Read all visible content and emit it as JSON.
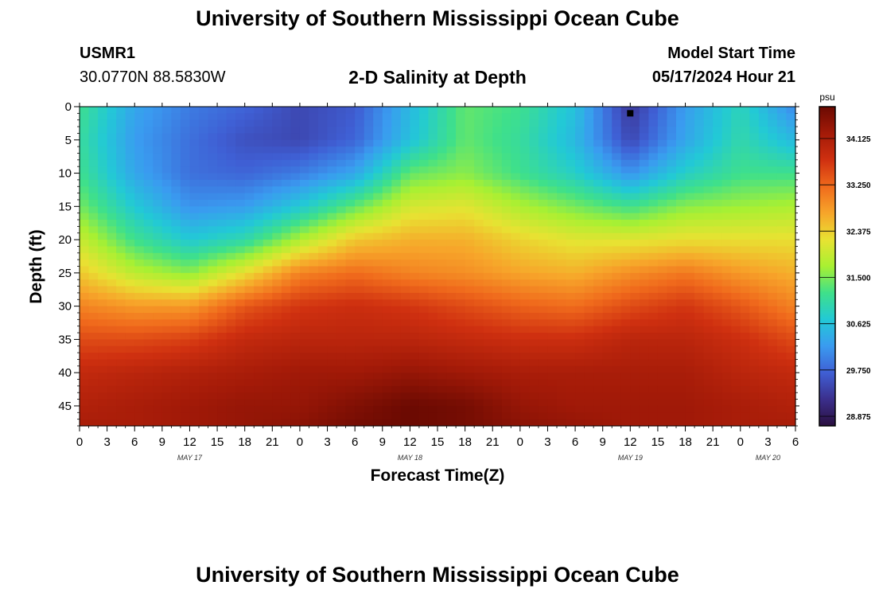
{
  "header": {
    "title": "University of Southern Mississippi Ocean Cube",
    "station": "USMR1",
    "coords": "30.0770N  88.5830W",
    "subtitle": "2-D Salinity at Depth",
    "model_start_label": "Model Start Time",
    "model_start_value": "05/17/2024 Hour 21"
  },
  "footer": {
    "title": "University of Southern Mississippi Ocean Cube"
  },
  "chart_data": {
    "type": "heatmap",
    "title": "2-D Salinity at Depth",
    "xlabel": "Forecast Time(Z)",
    "ylabel": "Depth (ft)",
    "x_hours_range": [
      0,
      78
    ],
    "x_tick_labels": [
      "0",
      "3",
      "6",
      "9",
      "12",
      "15",
      "18",
      "21",
      "0",
      "3",
      "6",
      "9",
      "12",
      "15",
      "18",
      "21",
      "0",
      "3",
      "6",
      "9",
      "12",
      "15",
      "18",
      "21",
      "0",
      "3",
      "6"
    ],
    "date_labels": [
      {
        "label": "MAY 17",
        "at_hour": 12
      },
      {
        "label": "MAY 18",
        "at_hour": 36
      },
      {
        "label": "MAY 19",
        "at_hour": 60
      },
      {
        "label": "MAY 20",
        "at_hour": 75
      }
    ],
    "y_range": [
      0,
      48
    ],
    "y_ticks": [
      0,
      5,
      10,
      15,
      20,
      25,
      30,
      35,
      40,
      45
    ],
    "colorbar": {
      "unit": "psu",
      "min": 28.5,
      "max": 34.8,
      "tick_labels": [
        "34.125",
        "33.250",
        "32.375",
        "31.500",
        "30.625",
        "29.750",
        "28.875"
      ],
      "colors": [
        "#2a0f3f",
        "#3b2f8c",
        "#3f5fd4",
        "#3a9bf0",
        "#22c9d6",
        "#3fe08a",
        "#a8f032",
        "#e8e232",
        "#f7a52a",
        "#f06a1c",
        "#cf3010",
        "#a31a08",
        "#6b0a02"
      ]
    },
    "depths_ft": [
      0,
      5,
      10,
      15,
      20,
      25,
      30,
      35,
      40,
      45,
      48
    ],
    "hours": [
      0,
      6,
      12,
      18,
      24,
      30,
      36,
      42,
      48,
      54,
      60,
      66,
      72,
      78
    ],
    "salinity_psu": [
      [
        31.1,
        30.2,
        29.8,
        29.6,
        29.3,
        29.5,
        30.4,
        31.3,
        31.1,
        30.5,
        29.1,
        30.1,
        30.8,
        29.9
      ],
      [
        31.0,
        30.1,
        29.7,
        29.4,
        29.3,
        29.6,
        30.5,
        31.3,
        31.0,
        30.4,
        29.3,
        30.2,
        30.9,
        30.4
      ],
      [
        31.1,
        30.2,
        29.7,
        29.6,
        29.8,
        30.2,
        31.3,
        31.5,
        31.1,
        30.7,
        30.0,
        30.7,
        31.1,
        31.1
      ],
      [
        31.4,
        30.6,
        30.0,
        30.1,
        30.6,
        31.3,
        32.0,
        32.1,
        31.7,
        31.4,
        31.1,
        31.5,
        31.6,
        31.7
      ],
      [
        31.9,
        31.1,
        30.6,
        30.9,
        31.7,
        32.4,
        32.6,
        32.6,
        32.3,
        32.1,
        32.1,
        32.2,
        32.2,
        32.2
      ],
      [
        32.4,
        31.8,
        31.5,
        32.2,
        33.0,
        33.2,
        33.0,
        32.9,
        32.7,
        32.6,
        32.9,
        33.1,
        32.8,
        32.6
      ],
      [
        33.0,
        32.8,
        32.8,
        33.4,
        33.7,
        33.8,
        33.7,
        33.5,
        33.3,
        33.2,
        33.5,
        33.7,
        33.4,
        33.0
      ],
      [
        33.5,
        33.5,
        33.6,
        33.9,
        34.0,
        34.0,
        34.0,
        33.9,
        33.8,
        33.8,
        34.0,
        34.0,
        33.8,
        33.5
      ],
      [
        33.9,
        34.0,
        34.1,
        34.2,
        34.3,
        34.3,
        34.4,
        34.3,
        34.2,
        34.2,
        34.2,
        34.2,
        34.0,
        33.9
      ],
      [
        34.1,
        34.2,
        34.3,
        34.4,
        34.4,
        34.6,
        34.8,
        34.7,
        34.4,
        34.3,
        34.3,
        34.3,
        34.2,
        34.1
      ],
      [
        34.2,
        34.2,
        34.3,
        34.4,
        34.5,
        34.7,
        34.8,
        34.7,
        34.5,
        34.4,
        34.3,
        34.3,
        34.2,
        34.2
      ]
    ]
  }
}
